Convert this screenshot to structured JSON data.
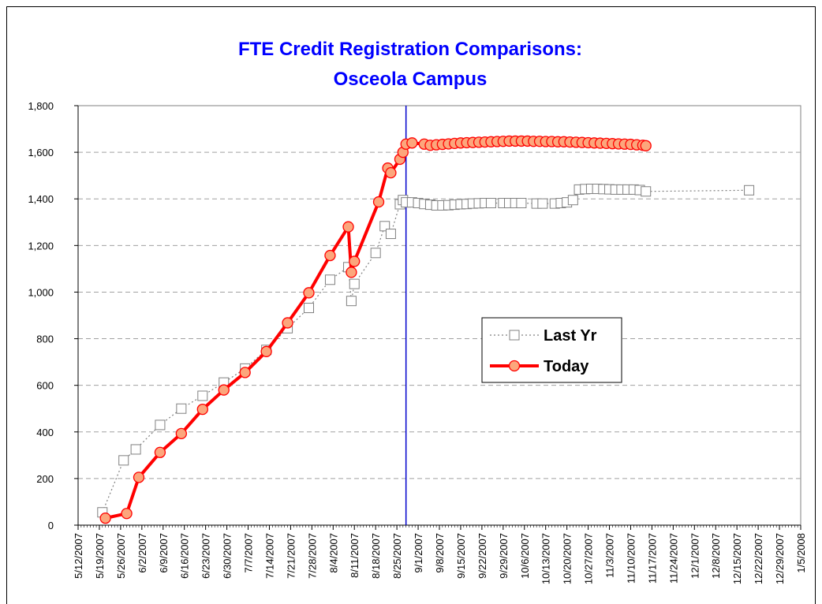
{
  "chart_data": {
    "type": "line",
    "title": [
      "FTE Credit Registration Comparisons:",
      "Osceola Campus"
    ],
    "xlim": [
      "2007-05-12",
      "2008-01-05"
    ],
    "xticks": [
      {
        "value": "2007-05-12",
        "label": "5/12/2007"
      },
      {
        "value": "2007-05-19",
        "label": "5/19/2007"
      },
      {
        "value": "2007-05-26",
        "label": "5/26/2007"
      },
      {
        "value": "2007-06-02",
        "label": "6/2/2007"
      },
      {
        "value": "2007-06-09",
        "label": "6/9/2007"
      },
      {
        "value": "2007-06-16",
        "label": "6/16/2007"
      },
      {
        "value": "2007-06-23",
        "label": "6/23/2007"
      },
      {
        "value": "2007-06-30",
        "label": "6/30/2007"
      },
      {
        "value": "2007-07-07",
        "label": "7/7/2007"
      },
      {
        "value": "2007-07-14",
        "label": "7/14/2007"
      },
      {
        "value": "2007-07-21",
        "label": "7/21/2007"
      },
      {
        "value": "2007-07-28",
        "label": "7/28/2007"
      },
      {
        "value": "2007-08-04",
        "label": "8/4/2007"
      },
      {
        "value": "2007-08-11",
        "label": "8/11/2007"
      },
      {
        "value": "2007-08-18",
        "label": "8/18/2007"
      },
      {
        "value": "2007-08-25",
        "label": "8/25/2007"
      },
      {
        "value": "2007-09-01",
        "label": "9/1/2007"
      },
      {
        "value": "2007-09-08",
        "label": "9/8/2007"
      },
      {
        "value": "2007-09-15",
        "label": "9/15/2007"
      },
      {
        "value": "2007-09-22",
        "label": "9/22/2007"
      },
      {
        "value": "2007-09-29",
        "label": "9/29/2007"
      },
      {
        "value": "2007-10-06",
        "label": "10/6/2007"
      },
      {
        "value": "2007-10-13",
        "label": "10/13/2007"
      },
      {
        "value": "2007-10-20",
        "label": "10/20/2007"
      },
      {
        "value": "2007-10-27",
        "label": "10/27/2007"
      },
      {
        "value": "2007-11-03",
        "label": "11/3/2007"
      },
      {
        "value": "2007-11-10",
        "label": "11/10/2007"
      },
      {
        "value": "2007-11-17",
        "label": "11/17/2007"
      },
      {
        "value": "2007-11-24",
        "label": "11/24/2007"
      },
      {
        "value": "2007-12-01",
        "label": "12/1/2007"
      },
      {
        "value": "2007-12-08",
        "label": "12/8/2007"
      },
      {
        "value": "2007-12-15",
        "label": "12/15/2007"
      },
      {
        "value": "2007-12-22",
        "label": "12/22/2007"
      },
      {
        "value": "2007-12-29",
        "label": "12/29/2007"
      },
      {
        "value": "2008-01-05",
        "label": "1/5/2008"
      }
    ],
    "ylim": [
      0,
      1800
    ],
    "yticks": [
      0,
      200,
      400,
      600,
      800,
      {
        "value": 1000,
        "label": "1,000"
      },
      {
        "value": 1200,
        "label": "1,200"
      },
      {
        "value": 1400,
        "label": "1,400"
      },
      {
        "value": 1600,
        "label": "1,600"
      },
      {
        "value": 1800,
        "label": "1,800"
      }
    ],
    "grid": true,
    "vline": "2007-08-28",
    "vline_color": "#0000cc",
    "legend_position": "right",
    "series": [
      {
        "name": "Last Yr",
        "color": "#808080",
        "style": "dotted",
        "marker": "square",
        "x": [
          "2007-05-20",
          "2007-05-27",
          "2007-05-31",
          "2007-06-08",
          "2007-06-15",
          "2007-06-22",
          "2007-06-29",
          "2007-07-06",
          "2007-07-13",
          "2007-07-20",
          "2007-07-27",
          "2007-08-03",
          "2007-08-09",
          "2007-08-10",
          "2007-08-11",
          "2007-08-18",
          "2007-08-21",
          "2007-08-23",
          "2007-08-26",
          "2007-08-27",
          "2007-08-28",
          "2007-08-30",
          "2007-09-01",
          "2007-09-03",
          "2007-09-05",
          "2007-09-07",
          "2007-09-09",
          "2007-09-11",
          "2007-09-13",
          "2007-09-15",
          "2007-09-17",
          "2007-09-19",
          "2007-09-21",
          "2007-09-23",
          "2007-09-25",
          "2007-09-29",
          "2007-10-01",
          "2007-10-03",
          "2007-10-05",
          "2007-10-10",
          "2007-10-12",
          "2007-10-16",
          "2007-10-18",
          "2007-10-20",
          "2007-10-22",
          "2007-10-24",
          "2007-10-26",
          "2007-10-28",
          "2007-10-30",
          "2007-11-01",
          "2007-11-03",
          "2007-11-05",
          "2007-11-07",
          "2007-11-09",
          "2007-11-11",
          "2007-11-13",
          "2007-11-15",
          "2007-12-19"
        ],
        "values": [
          55,
          278,
          325,
          430,
          500,
          555,
          612,
          672,
          752,
          845,
          932,
          1053,
          1107,
          962,
          1035,
          1168,
          1283,
          1250,
          1377,
          1395,
          1385,
          1385,
          1382,
          1378,
          1375,
          1372,
          1372,
          1373,
          1375,
          1377,
          1378,
          1380,
          1381,
          1382,
          1382,
          1382,
          1382,
          1382,
          1382,
          1380,
          1380,
          1380,
          1382,
          1385,
          1395,
          1440,
          1442,
          1443,
          1443,
          1442,
          1441,
          1440,
          1440,
          1440,
          1440,
          1438,
          1432,
          1437
        ]
      },
      {
        "name": "Today",
        "color": "#ff0000",
        "marker_fill": "#fca67c",
        "style": "solid",
        "marker": "circle",
        "x": [
          "2007-05-21",
          "2007-05-28",
          "2007-06-01",
          "2007-06-08",
          "2007-06-15",
          "2007-06-22",
          "2007-06-29",
          "2007-07-06",
          "2007-07-13",
          "2007-07-20",
          "2007-07-27",
          "2007-08-03",
          "2007-08-09",
          "2007-08-10",
          "2007-08-11",
          "2007-08-19",
          "2007-08-22",
          "2007-08-23",
          "2007-08-26",
          "2007-08-27",
          "2007-08-28",
          "2007-08-30",
          "2007-09-03",
          "2007-09-05",
          "2007-09-07",
          "2007-09-09",
          "2007-09-11",
          "2007-09-13",
          "2007-09-15",
          "2007-09-17",
          "2007-09-19",
          "2007-09-21",
          "2007-09-23",
          "2007-09-25",
          "2007-09-27",
          "2007-09-29",
          "2007-10-01",
          "2007-10-03",
          "2007-10-05",
          "2007-10-07",
          "2007-10-09",
          "2007-10-11",
          "2007-10-13",
          "2007-10-15",
          "2007-10-17",
          "2007-10-19",
          "2007-10-21",
          "2007-10-23",
          "2007-10-25",
          "2007-10-27",
          "2007-10-29",
          "2007-10-31",
          "2007-11-02",
          "2007-11-04",
          "2007-11-06",
          "2007-11-08",
          "2007-11-10",
          "2007-11-12",
          "2007-11-14",
          "2007-11-15"
        ],
        "values": [
          30,
          50,
          205,
          312,
          393,
          497,
          580,
          655,
          745,
          868,
          997,
          1157,
          1280,
          1085,
          1132,
          1387,
          1532,
          1512,
          1570,
          1600,
          1635,
          1640,
          1635,
          1630,
          1632,
          1634,
          1636,
          1638,
          1640,
          1641,
          1642,
          1643,
          1644,
          1645,
          1646,
          1647,
          1648,
          1648,
          1648,
          1648,
          1647,
          1647,
          1646,
          1646,
          1645,
          1645,
          1644,
          1643,
          1642,
          1641,
          1640,
          1639,
          1638,
          1637,
          1636,
          1635,
          1634,
          1632,
          1630,
          1628
        ]
      }
    ]
  }
}
